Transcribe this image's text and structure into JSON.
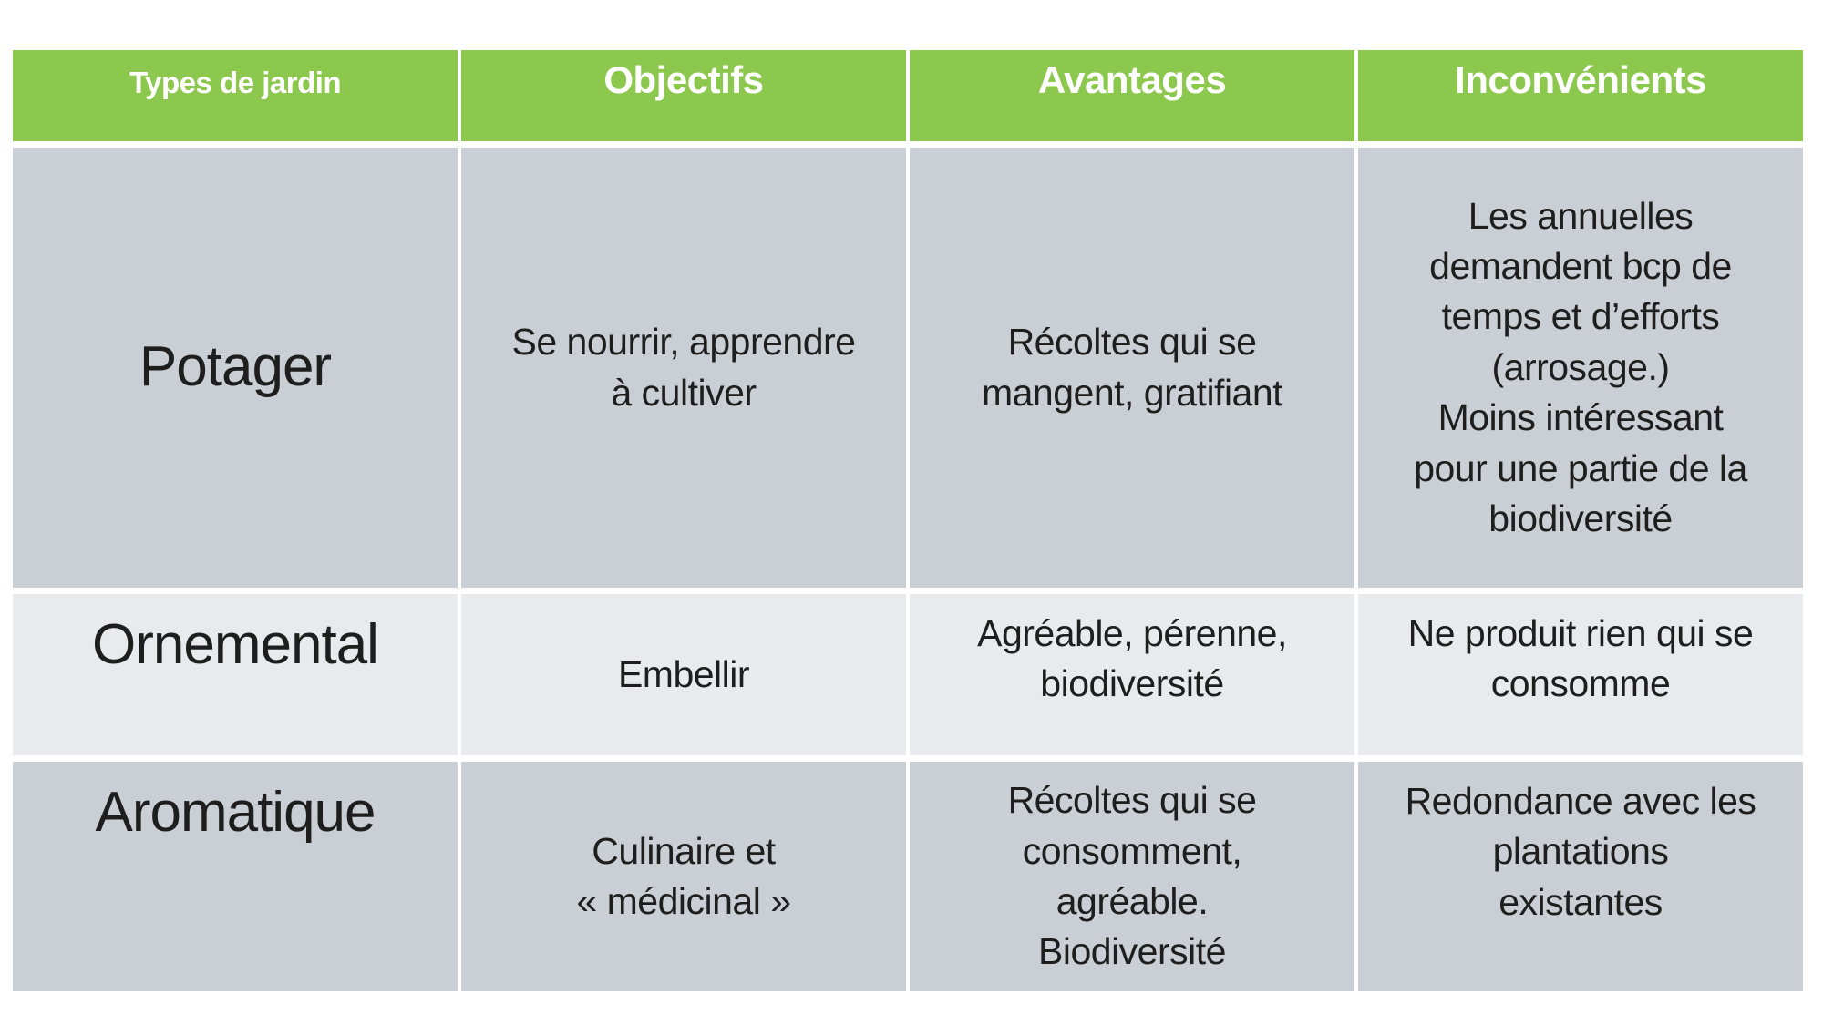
{
  "theme": {
    "header_bg": "#8DC84E",
    "header_text": "#FFFFFF",
    "row_odd_bg": "#CACED5",
    "row_even_bg": "#E8EAED",
    "body_text": "#1E1E1E",
    "divider": "#FFFFFF"
  },
  "table": {
    "columns": [
      {
        "label": "Types de jardin"
      },
      {
        "label": "Objectifs"
      },
      {
        "label": "Avantages"
      },
      {
        "label": "Inconvénients"
      }
    ],
    "rows": [
      {
        "cells": [
          "Potager",
          "Se nourrir, apprendre\nà cultiver",
          "Récoltes qui se\nmangent, gratifiant",
          "Les annuelles\ndemandent bcp de\ntemps et d’efforts\n(arrosage.)\nMoins intéressant\npour une partie de la\nbiodiversité"
        ]
      },
      {
        "cells": [
          "Ornemental",
          "Embellir",
          "Agréable, pérenne,\nbiodiversité",
          "Ne produit rien qui se\nconsomme"
        ]
      },
      {
        "cells": [
          "Aromatique",
          "Culinaire et\n« médicinal »",
          "Récoltes qui se\nconsomment,\nagréable.\nBiodiversité",
          "Redondance avec les\nplantations\nexistantes"
        ]
      }
    ]
  }
}
